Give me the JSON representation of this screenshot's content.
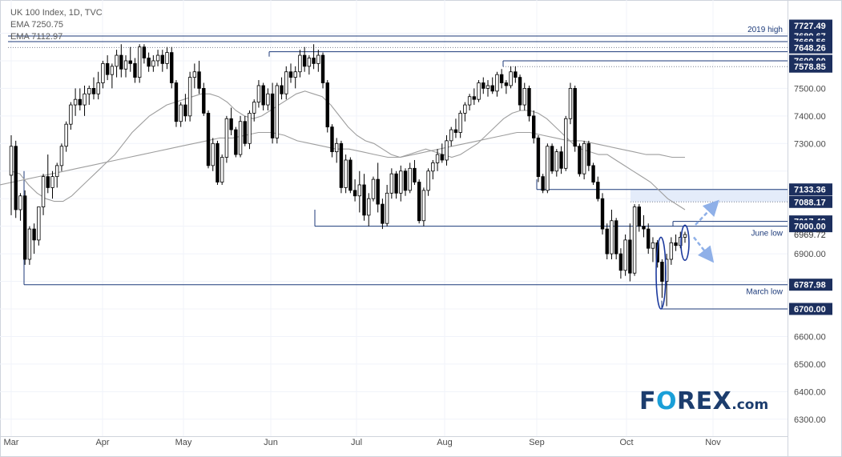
{
  "legend": {
    "title": "UK 100 Index, 1D, TVC",
    "ema1": "EMA  7250.75",
    "ema2": "EMA  7112.97"
  },
  "logo": {
    "main_before": "F",
    "main_o": "O",
    "main_after": "REX",
    "suffix": ".com"
  },
  "colors": {
    "candle": "#000000",
    "level_line": "#1c3a7a",
    "ema_fast": "#9e9e9e",
    "ema_slow": "#9e9e9e",
    "label_bg": "#1c2f5e",
    "label_text": "#ffffff",
    "zone_fill": "#e4ecfa",
    "highlight_ellipse": "#1c3a9e",
    "arrow": "#8fb0e8",
    "logo_dark": "#1c3d6e",
    "logo_accent": "#1a9fd8"
  },
  "chart_data": {
    "type": "candlestick",
    "title": "UK 100 Index, 1D, TVC",
    "x_labels": [
      "Mar",
      "Apr",
      "May",
      "Jun",
      "Jul",
      "Aug",
      "Sep",
      "Oct",
      "Nov"
    ],
    "y_ticks": [
      6300,
      6400,
      6500,
      6600,
      6900,
      7300,
      7400,
      7500
    ],
    "ylim": [
      6290,
      7740
    ],
    "grid": true,
    "price_labels": [
      {
        "value": 7727.49,
        "text": "7727.49"
      },
      {
        "value": 7689.67,
        "text": "7689.67"
      },
      {
        "value": 7669.56,
        "text": "7669.56"
      },
      {
        "value": 7648.26,
        "text": "7648.26"
      },
      {
        "value": 7600.0,
        "text": "7600.00"
      },
      {
        "value": 7578.85,
        "text": "7578.85"
      },
      {
        "value": 7133.36,
        "text": "7133.36"
      },
      {
        "value": 7088.17,
        "text": "7088.17"
      },
      {
        "value": 7017.4,
        "text": "7017.40"
      },
      {
        "value": 7000.0,
        "text": "7000.00"
      },
      {
        "value": 6787.98,
        "text": "6787.98"
      },
      {
        "value": 6700.0,
        "text": "6700.00"
      }
    ],
    "plain_price_labels": [
      {
        "value": 6969.72,
        "text": "6969.72"
      }
    ],
    "annotations": [
      {
        "text": "2019 high",
        "value": 7689.67
      },
      {
        "text": "June low",
        "value": 7000.0
      },
      {
        "text": "March low",
        "value": 6787.98
      }
    ],
    "candles": [
      [
        7185,
        7330,
        7040,
        7290
      ],
      [
        7290,
        7310,
        7030,
        7060
      ],
      [
        7060,
        7120,
        7020,
        7110
      ],
      [
        7110,
        7130,
        6860,
        6880
      ],
      [
        6880,
        7000,
        6860,
        6990
      ],
      [
        6990,
        7010,
        6900,
        6950
      ],
      [
        6950,
        7070,
        6930,
        7070
      ],
      [
        7070,
        7190,
        7040,
        7180
      ],
      [
        7180,
        7260,
        7120,
        7140
      ],
      [
        7140,
        7200,
        7100,
        7180
      ],
      [
        7180,
        7230,
        7140,
        7220
      ],
      [
        7220,
        7300,
        7200,
        7290
      ],
      [
        7290,
        7380,
        7270,
        7370
      ],
      [
        7370,
        7450,
        7350,
        7440
      ],
      [
        7440,
        7500,
        7400,
        7460
      ],
      [
        7460,
        7500,
        7420,
        7440
      ],
      [
        7440,
        7510,
        7400,
        7480
      ],
      [
        7480,
        7510,
        7440,
        7500
      ],
      [
        7500,
        7540,
        7460,
        7480
      ],
      [
        7480,
        7560,
        7460,
        7520
      ],
      [
        7520,
        7600,
        7500,
        7590
      ],
      [
        7590,
        7620,
        7530,
        7550
      ],
      [
        7550,
        7590,
        7500,
        7580
      ],
      [
        7580,
        7640,
        7540,
        7620
      ],
      [
        7620,
        7660,
        7540,
        7570
      ],
      [
        7570,
        7620,
        7540,
        7600
      ],
      [
        7600,
        7650,
        7560,
        7590
      ],
      [
        7590,
        7610,
        7520,
        7540
      ],
      [
        7540,
        7660,
        7520,
        7650
      ],
      [
        7650,
        7660,
        7590,
        7610
      ],
      [
        7610,
        7630,
        7560,
        7580
      ],
      [
        7580,
        7620,
        7560,
        7600
      ],
      [
        7600,
        7640,
        7580,
        7620
      ],
      [
        7620,
        7640,
        7560,
        7590
      ],
      [
        7590,
        7650,
        7570,
        7630
      ],
      [
        7630,
        7650,
        7500,
        7520
      ],
      [
        7520,
        7530,
        7360,
        7380
      ],
      [
        7380,
        7450,
        7360,
        7440
      ],
      [
        7440,
        7480,
        7380,
        7400
      ],
      [
        7400,
        7560,
        7380,
        7540
      ],
      [
        7540,
        7590,
        7500,
        7560
      ],
      [
        7560,
        7600,
        7480,
        7500
      ],
      [
        7500,
        7520,
        7400,
        7410
      ],
      [
        7410,
        7420,
        7210,
        7220
      ],
      [
        7220,
        7320,
        7200,
        7300
      ],
      [
        7300,
        7310,
        7150,
        7160
      ],
      [
        7160,
        7260,
        7150,
        7250
      ],
      [
        7250,
        7400,
        7230,
        7390
      ],
      [
        7390,
        7430,
        7330,
        7350
      ],
      [
        7350,
        7360,
        7250,
        7260
      ],
      [
        7260,
        7400,
        7250,
        7380
      ],
      [
        7380,
        7400,
        7290,
        7300
      ],
      [
        7300,
        7420,
        7280,
        7410
      ],
      [
        7410,
        7460,
        7380,
        7450
      ],
      [
        7450,
        7530,
        7430,
        7510
      ],
      [
        7510,
        7520,
        7420,
        7440
      ],
      [
        7440,
        7500,
        7420,
        7480
      ],
      [
        7480,
        7520,
        7300,
        7320
      ],
      [
        7320,
        7520,
        7300,
        7510
      ],
      [
        7510,
        7540,
        7460,
        7480
      ],
      [
        7480,
        7580,
        7460,
        7560
      ],
      [
        7560,
        7590,
        7520,
        7540
      ],
      [
        7540,
        7580,
        7500,
        7560
      ],
      [
        7560,
        7640,
        7540,
        7620
      ],
      [
        7620,
        7650,
        7560,
        7580
      ],
      [
        7580,
        7620,
        7550,
        7610
      ],
      [
        7610,
        7660,
        7570,
        7590
      ],
      [
        7590,
        7640,
        7560,
        7620
      ],
      [
        7620,
        7630,
        7500,
        7520
      ],
      [
        7520,
        7530,
        7340,
        7360
      ],
      [
        7360,
        7370,
        7250,
        7270
      ],
      [
        7270,
        7320,
        7230,
        7300
      ],
      [
        7300,
        7310,
        7120,
        7140
      ],
      [
        7140,
        7260,
        7120,
        7240
      ],
      [
        7240,
        7250,
        7120,
        7130
      ],
      [
        7130,
        7170,
        7090,
        7110
      ],
      [
        7110,
        7200,
        7050,
        7150
      ],
      [
        7150,
        7190,
        7020,
        7040
      ],
      [
        7040,
        7120,
        7000,
        7100
      ],
      [
        7100,
        7180,
        7090,
        7170
      ],
      [
        7170,
        7230,
        7050,
        7080
      ],
      [
        7080,
        7100,
        6990,
        7010
      ],
      [
        7010,
        7150,
        7000,
        7120
      ],
      [
        7120,
        7210,
        7100,
        7190
      ],
      [
        7190,
        7200,
        7100,
        7120
      ],
      [
        7120,
        7220,
        7090,
        7200
      ],
      [
        7200,
        7210,
        7110,
        7130
      ],
      [
        7130,
        7230,
        7120,
        7210
      ],
      [
        7210,
        7240,
        7150,
        7160
      ],
      [
        7160,
        7170,
        7010,
        7020
      ],
      [
        7020,
        7140,
        7000,
        7130
      ],
      [
        7130,
        7210,
        7110,
        7200
      ],
      [
        7200,
        7240,
        7170,
        7230
      ],
      [
        7230,
        7280,
        7200,
        7260
      ],
      [
        7260,
        7300,
        7230,
        7240
      ],
      [
        7240,
        7330,
        7220,
        7310
      ],
      [
        7310,
        7360,
        7290,
        7350
      ],
      [
        7350,
        7390,
        7320,
        7340
      ],
      [
        7340,
        7420,
        7320,
        7410
      ],
      [
        7410,
        7450,
        7380,
        7440
      ],
      [
        7440,
        7480,
        7420,
        7470
      ],
      [
        7470,
        7500,
        7440,
        7460
      ],
      [
        7460,
        7530,
        7450,
        7520
      ],
      [
        7520,
        7540,
        7480,
        7500
      ],
      [
        7500,
        7530,
        7470,
        7510
      ],
      [
        7510,
        7540,
        7480,
        7490
      ],
      [
        7490,
        7560,
        7470,
        7550
      ],
      [
        7550,
        7570,
        7500,
        7520
      ],
      [
        7520,
        7530,
        7480,
        7510
      ],
      [
        7510,
        7580,
        7500,
        7560
      ],
      [
        7560,
        7580,
        7520,
        7540
      ],
      [
        7540,
        7550,
        7420,
        7440
      ],
      [
        7440,
        7520,
        7420,
        7500
      ],
      [
        7500,
        7510,
        7380,
        7400
      ],
      [
        7400,
        7420,
        7300,
        7320
      ],
      [
        7320,
        7330,
        7160,
        7180
      ],
      [
        7180,
        7190,
        7120,
        7130
      ],
      [
        7130,
        7300,
        7120,
        7290
      ],
      [
        7290,
        7300,
        7190,
        7200
      ],
      [
        7200,
        7280,
        7180,
        7270
      ],
      [
        7270,
        7290,
        7190,
        7210
      ],
      [
        7210,
        7400,
        7200,
        7390
      ],
      [
        7390,
        7520,
        7370,
        7500
      ],
      [
        7500,
        7510,
        7270,
        7290
      ],
      [
        7290,
        7300,
        7180,
        7190
      ],
      [
        7190,
        7310,
        7170,
        7300
      ],
      [
        7300,
        7310,
        7200,
        7220
      ],
      [
        7220,
        7230,
        7150,
        7160
      ],
      [
        7160,
        7180,
        7090,
        7100
      ],
      [
        7100,
        7120,
        6970,
        6990
      ],
      [
        6990,
        7010,
        6880,
        6900
      ],
      [
        6900,
        7060,
        6880,
        7020
      ],
      [
        7020,
        7030,
        6880,
        6900
      ],
      [
        6900,
        6920,
        6810,
        6840
      ],
      [
        6840,
        6970,
        6820,
        6950
      ],
      [
        6950,
        7010,
        6800,
        6830
      ],
      [
        6830,
        7080,
        6820,
        7070
      ],
      [
        7070,
        7080,
        6980,
        7000
      ],
      [
        7000,
        7040,
        6960,
        6990
      ],
      [
        6990,
        7010,
        6900,
        6920
      ],
      [
        6920,
        6960,
        6870,
        6940
      ],
      [
        6940,
        6950,
        6850,
        6870
      ],
      [
        6870,
        6880,
        6740,
        6800
      ],
      [
        6800,
        6900,
        6710,
        6880
      ],
      [
        6880,
        6960,
        6860,
        6940
      ],
      [
        6940,
        6970,
        6910,
        6930
      ],
      [
        6930,
        6980,
        6920,
        6960
      ],
      [
        6960,
        6980,
        6940,
        6970
      ]
    ],
    "ema_fast_values": [
      7200,
      7190,
      7150,
      7120,
      7100,
      7090,
      7090,
      7110,
      7140,
      7170,
      7200,
      7230,
      7260,
      7300,
      7340,
      7370,
      7400,
      7420,
      7440,
      7450,
      7460,
      7470,
      7480,
      7480,
      7470,
      7450,
      7420,
      7400,
      7390,
      7400,
      7420,
      7440,
      7460,
      7480,
      7490,
      7480,
      7470,
      7440,
      7400,
      7360,
      7330,
      7310,
      7300,
      7280,
      7260,
      7250,
      7260,
      7270,
      7280,
      7270,
      7260,
      7250,
      7260,
      7280,
      7300,
      7330,
      7360,
      7390,
      7410,
      7420,
      7420,
      7410,
      7390,
      7360,
      7330,
      7300,
      7280,
      7270,
      7260,
      7260,
      7240,
      7220,
      7200,
      7180,
      7160,
      7130,
      7100,
      7080,
      7060
    ],
    "ema_slow_values": [
      7150,
      7160,
      7170,
      7180,
      7190,
      7200,
      7210,
      7220,
      7230,
      7240,
      7250,
      7260,
      7270,
      7280,
      7290,
      7300,
      7310,
      7320,
      7320,
      7330,
      7340,
      7340,
      7330,
      7310,
      7300,
      7290,
      7280,
      7280,
      7270,
      7260,
      7250,
      7250,
      7260,
      7270,
      7280,
      7290,
      7300,
      7310,
      7320,
      7330,
      7340,
      7340,
      7330,
      7320,
      7310,
      7310,
      7300,
      7290,
      7280,
      7270,
      7260,
      7260,
      7250,
      7250
    ]
  }
}
